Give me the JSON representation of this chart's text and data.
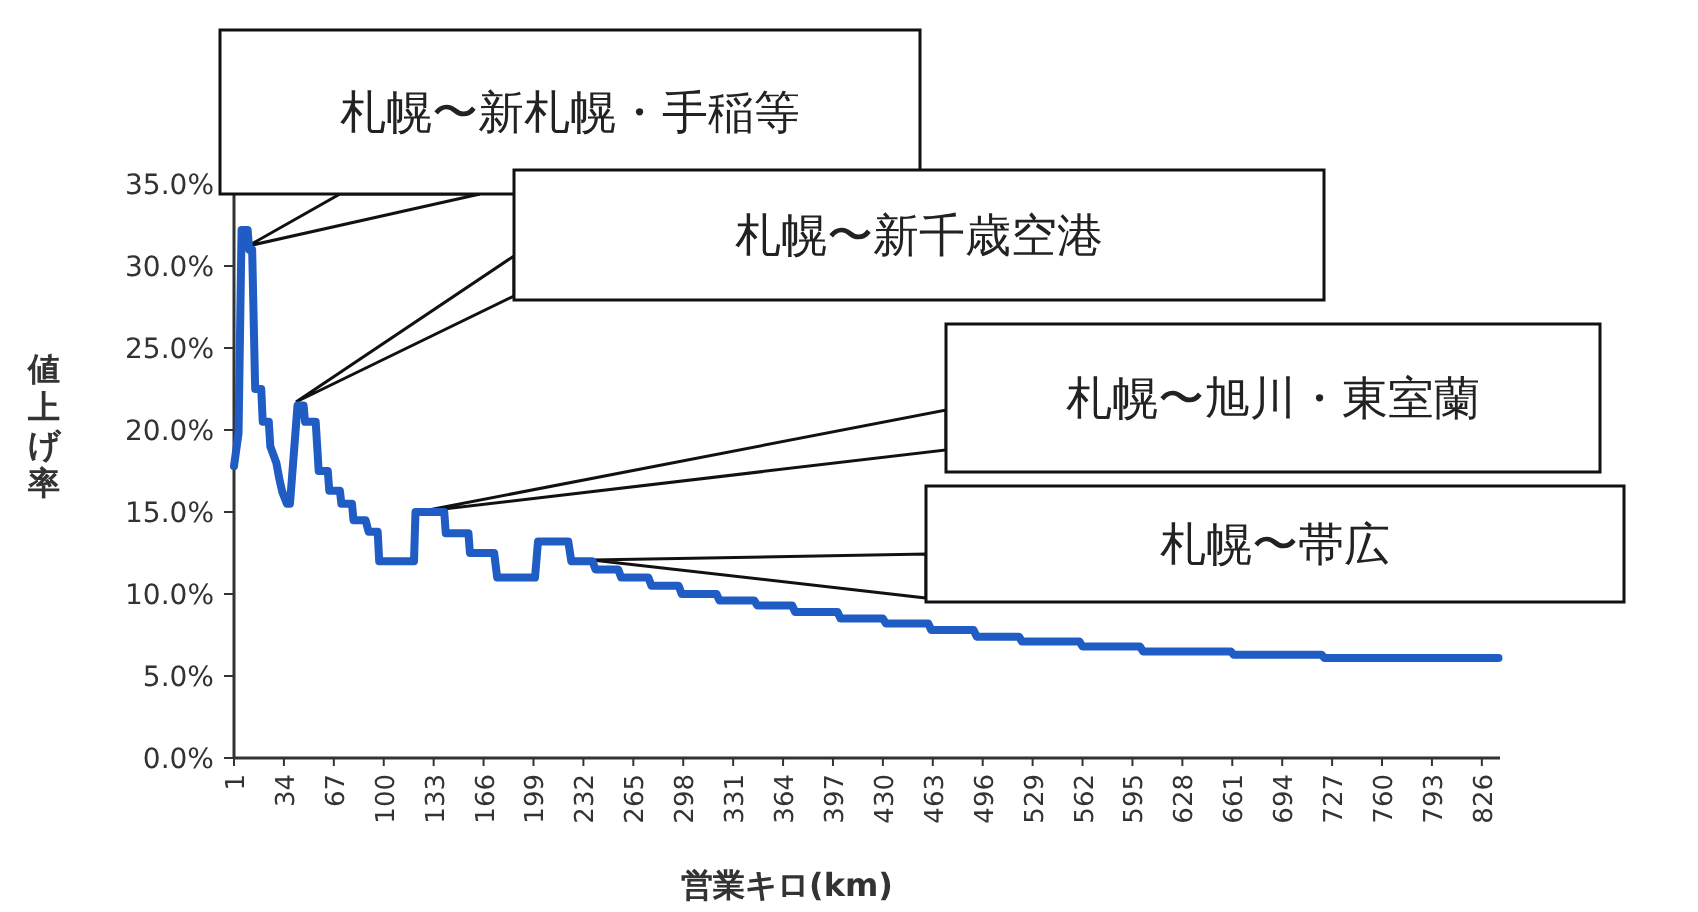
{
  "chart_data": {
    "type": "line",
    "xlabel": "営業キロ(km)",
    "ylabel": "値上げ率",
    "xlim": [
      1,
      838
    ],
    "xticks": [
      1,
      34,
      67,
      100,
      133,
      166,
      199,
      232,
      265,
      298,
      331,
      364,
      397,
      430,
      463,
      496,
      529,
      562,
      595,
      628,
      661,
      694,
      727,
      760,
      793,
      826
    ],
    "ylim": [
      0,
      35
    ],
    "yticks": [
      {
        "value": 0,
        "label": "0.0%"
      },
      {
        "value": 5,
        "label": "5.0%"
      },
      {
        "value": 10,
        "label": "10.0%"
      },
      {
        "value": 15,
        "label": "15.0%"
      },
      {
        "value": 20,
        "label": "20.0%"
      },
      {
        "value": 25,
        "label": "25.0%"
      },
      {
        "value": 30,
        "label": "30.0%"
      },
      {
        "value": 35,
        "label": "35.0%"
      }
    ],
    "series": [
      {
        "color": "#1f5cc4",
        "x": [
          1,
          4,
          6,
          10,
          11,
          13,
          15,
          19,
          20,
          24,
          25,
          29,
          31,
          33,
          36,
          38,
          43,
          47,
          48,
          55,
          57,
          63,
          64,
          71,
          72,
          79,
          80,
          88,
          90,
          96,
          97,
          120,
          121,
          140,
          141,
          156,
          157,
          173,
          175,
          200,
          202,
          222,
          224,
          238,
          240,
          255,
          257,
          275,
          277,
          295,
          297,
          320,
          322,
          345,
          347,
          370,
          372,
          400,
          402,
          430,
          432,
          460,
          462,
          490,
          492,
          520,
          522,
          560,
          562,
          600,
          602,
          660,
          662,
          720,
          722,
          837
        ],
        "values": [
          17.8,
          19.8,
          32.2,
          32.2,
          31,
          31,
          22.5,
          22.5,
          20.5,
          20.5,
          19,
          18,
          17,
          16.2,
          15.5,
          15.5,
          21.5,
          21.5,
          20.5,
          20.5,
          17.5,
          17.5,
          16.3,
          16.3,
          15.5,
          15.5,
          14.5,
          14.5,
          13.8,
          13.8,
          12,
          12,
          15,
          15,
          13.7,
          13.7,
          12.5,
          12.5,
          11,
          11,
          13.2,
          13.2,
          12,
          12,
          11.5,
          11.5,
          11,
          11,
          10.5,
          10.5,
          10,
          10,
          9.6,
          9.6,
          9.3,
          9.3,
          8.9,
          8.9,
          8.5,
          8.5,
          8.2,
          8.2,
          7.8,
          7.8,
          7.4,
          7.4,
          7.1,
          7.1,
          6.8,
          6.8,
          6.5,
          6.5,
          6.3,
          6.3,
          6.1,
          6.1
        ]
      }
    ],
    "annotations": [
      "札幌〜新札幌・手稲等",
      "札幌〜新千歳空港",
      "札幌〜旭川・東室蘭",
      "札幌〜帯広"
    ]
  }
}
